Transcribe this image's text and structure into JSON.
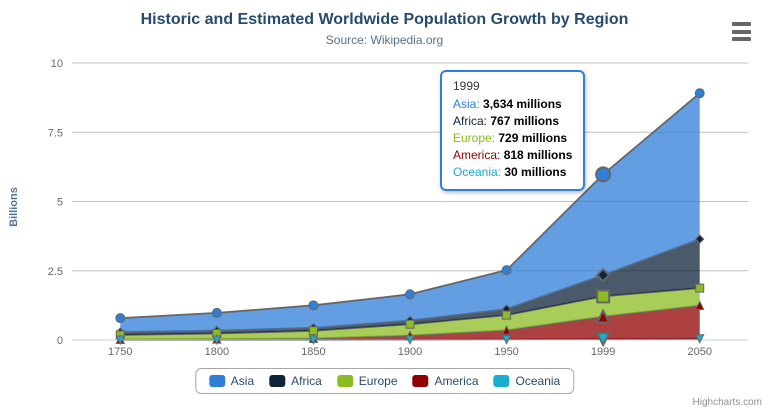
{
  "header": {
    "title": "Historic and Estimated Worldwide Population Growth by Region",
    "subtitle": "Source: Wikipedia.org"
  },
  "credits": "Highcharts.com",
  "styles": {
    "grid": "#c0c0c0",
    "axis_line": "#c0d0e0",
    "line": "#666666",
    "labels": "#666666",
    "title_color": "#274b6d",
    "subtitle_color": "#55708c",
    "legend_text": "#274b6d",
    "credits_color": "#909090",
    "tooltip_border": "#2f7ed8"
  },
  "chart_data": {
    "type": "area",
    "stacking": "normal",
    "title": "Historic and Estimated Worldwide Population Growth by Region",
    "subtitle": "Source: Wikipedia.org",
    "categories": [
      "1750",
      "1800",
      "1850",
      "1900",
      "1950",
      "1999",
      "2050"
    ],
    "series": [
      {
        "name": "Asia",
        "color": "#2f7ed8",
        "marker": "circle",
        "values": [
          502,
          635,
          809,
          947,
          1402,
          3634,
          5268
        ]
      },
      {
        "name": "Africa",
        "color": "#0d233a",
        "marker": "diamond",
        "values": [
          106,
          107,
          111,
          133,
          221,
          767,
          1766
        ]
      },
      {
        "name": "Europe",
        "color": "#8bbc21",
        "marker": "square",
        "values": [
          163,
          203,
          276,
          408,
          547,
          729,
          628
        ]
      },
      {
        "name": "America",
        "color": "#910000",
        "marker": "triangle",
        "values": [
          18,
          31,
          54,
          156,
          339,
          818,
          1201
        ]
      },
      {
        "name": "Oceania",
        "color": "#1aadce",
        "marker": "triangle-down",
        "values": [
          2,
          2,
          2,
          6,
          13,
          30,
          46
        ]
      }
    ],
    "values_unit": "millions",
    "xlabel": "",
    "ylabel": "Billions",
    "yticks": [
      0,
      2.5,
      5,
      7.5,
      10
    ],
    "ylim": [
      0,
      10
    ],
    "grid": true,
    "legend_position": "bottom",
    "hover_index": 5
  },
  "tooltip": {
    "title": "1999",
    "rows": [
      {
        "name": "Asia",
        "color": "#2f7ed8",
        "value": "3,634 millions"
      },
      {
        "name": "Africa",
        "color": "#0d233a",
        "value": "767 millions"
      },
      {
        "name": "Europe",
        "color": "#8bbc21",
        "value": "729 millions"
      },
      {
        "name": "America",
        "color": "#910000",
        "value": "818 millions"
      },
      {
        "name": "Oceania",
        "color": "#1aadce",
        "value": "30 millions"
      }
    ]
  }
}
